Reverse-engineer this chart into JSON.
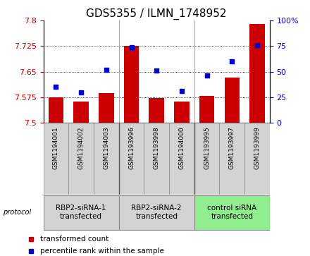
{
  "title": "GDS5355 / ILMN_1748952",
  "samples": [
    "GSM1194001",
    "GSM1194002",
    "GSM1194003",
    "GSM1193996",
    "GSM1193998",
    "GSM1194000",
    "GSM1193995",
    "GSM1193997",
    "GSM1193999"
  ],
  "bar_values": [
    7.575,
    7.563,
    7.588,
    7.725,
    7.573,
    7.563,
    7.578,
    7.632,
    7.79
  ],
  "percentile_values": [
    35,
    30,
    52,
    74,
    51,
    31,
    46,
    60,
    76
  ],
  "ylim_left": [
    7.5,
    7.8
  ],
  "ylim_right": [
    0,
    100
  ],
  "yticks_left": [
    7.5,
    7.575,
    7.65,
    7.725,
    7.8
  ],
  "ytick_labels_left": [
    "7.5",
    "7.575",
    "7.65",
    "7.725",
    "7.8"
  ],
  "yticks_right": [
    0,
    25,
    50,
    75,
    100
  ],
  "ytick_labels_right": [
    "0",
    "25",
    "50",
    "75",
    "100%"
  ],
  "bar_color": "#cc0000",
  "dot_color": "#0000cc",
  "bar_baseline": 7.5,
  "group_labels": [
    "RBP2-siRNA-1\ntransfected",
    "RBP2-siRNA-2\ntransfected",
    "control siRNA\ntransfected"
  ],
  "group_starts": [
    0,
    3,
    6
  ],
  "group_ends": [
    3,
    6,
    9
  ],
  "group_colors": [
    "#d3d3d3",
    "#d3d3d3",
    "#90ee90"
  ],
  "protocol_label": "protocol",
  "legend_bar_label": "transformed count",
  "legend_dot_label": "percentile rank within the sample",
  "grid_color": "#000000",
  "bg_color": "#ffffff",
  "title_fontsize": 11,
  "tick_fontsize": 8,
  "sample_fontsize": 6.5,
  "legend_fontsize": 7.5,
  "group_fontsize": 7.5
}
